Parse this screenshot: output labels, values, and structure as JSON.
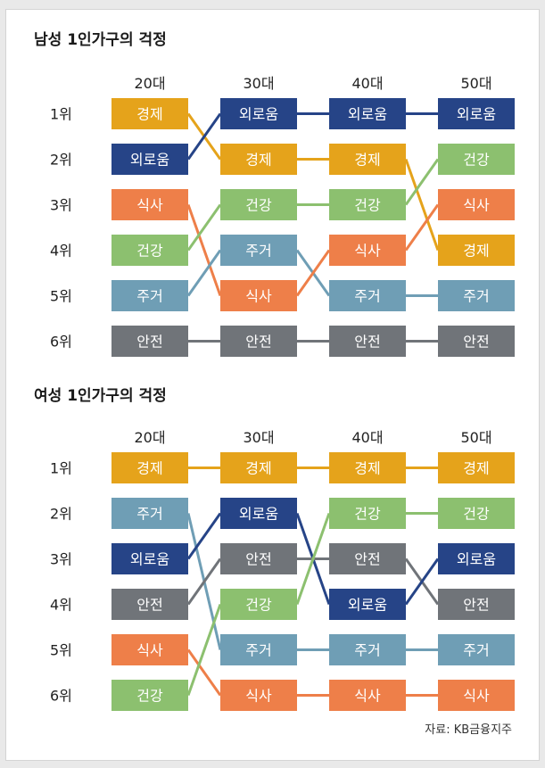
{
  "chart_data": [
    {
      "type": "table",
      "title": "남성 1인가구의 걱정",
      "columns": [
        "20대",
        "30대",
        "40대",
        "50대"
      ],
      "ranks": [
        "1위",
        "2위",
        "3위",
        "4위",
        "5위",
        "6위"
      ],
      "rankings": [
        [
          "경제",
          "외로움",
          "식사",
          "건강",
          "주거",
          "안전"
        ],
        [
          "외로움",
          "경제",
          "건강",
          "주거",
          "식사",
          "안전"
        ],
        [
          "외로움",
          "경제",
          "건강",
          "식사",
          "주거",
          "안전"
        ],
        [
          "외로움",
          "건강",
          "식사",
          "경제",
          "주거",
          "안전"
        ]
      ]
    },
    {
      "type": "table",
      "title": "여성 1인가구의 걱정",
      "columns": [
        "20대",
        "30대",
        "40대",
        "50대"
      ],
      "ranks": [
        "1위",
        "2위",
        "3위",
        "4위",
        "5위",
        "6위"
      ],
      "rankings": [
        [
          "경제",
          "주거",
          "외로움",
          "안전",
          "식사",
          "건강"
        ],
        [
          "경제",
          "외로움",
          "안전",
          "건강",
          "주거",
          "식사"
        ],
        [
          "경제",
          "건강",
          "안전",
          "외로움",
          "주거",
          "식사"
        ],
        [
          "경제",
          "건강",
          "외로움",
          "안전",
          "주거",
          "식사"
        ]
      ]
    }
  ],
  "colors": {
    "경제": "#e5a31b",
    "외로움": "#264487",
    "식사": "#ee7f49",
    "건강": "#8cc06f",
    "주거": "#6f9eb5",
    "안전": "#707479"
  },
  "source": "자료: KB금융지주"
}
